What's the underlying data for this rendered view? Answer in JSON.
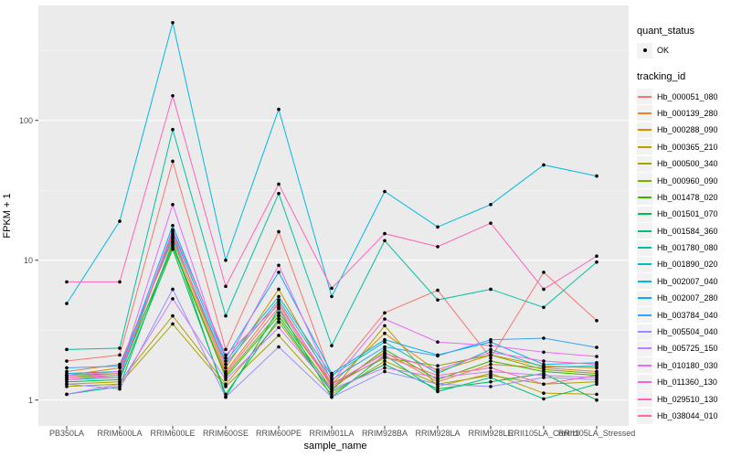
{
  "figure": {
    "background": "#FFFFFF",
    "panel_background": "#EBEBEB",
    "grid_major_color": "#FFFFFF",
    "grid_minor_color": "#F5F5F5",
    "tick_label_color": "#4D4D4D",
    "point_color": "#000000",
    "legend_key_background": "#F2F2F2"
  },
  "axes": {
    "y_title": "FPKM + 1",
    "x_title": "sample_name",
    "y_scale": "log10",
    "y_tick_labels": [
      "1",
      "10",
      "100"
    ],
    "y_tick_values": [
      1,
      10,
      100
    ],
    "y_minor_values": [
      3.162,
      31.62,
      316.2
    ]
  },
  "legend": {
    "quant_status_title": "quant_status",
    "quant_status_items": [
      {
        "label": "OK",
        "marker": "point-icon"
      }
    ],
    "tracking_title": "tracking_id"
  },
  "chart_data": {
    "type": "line",
    "title": "",
    "xlabel": "sample_name",
    "ylabel": "FPKM + 1",
    "y_scale": "log10",
    "ylim": [
      0.65,
      660
    ],
    "y_major_ticks": [
      1,
      10,
      100
    ],
    "y_minor_ticks": [
      3.162,
      31.62,
      316.2
    ],
    "grid": true,
    "legend_position": "right",
    "point_marker": "filled-circle-black",
    "categories": [
      "PB350LA",
      "RRIM600LA",
      "RRIM600LE",
      "RRIM600SE",
      "RRIM600PE",
      "RRIM901LA",
      "RRIM928BA",
      "RRIM928LA",
      "RRIM928LE",
      "RRII105LA_Control",
      "RRII105LA_Stressed"
    ],
    "series": [
      {
        "name": "Hb_000051_080",
        "color": "#F8766D",
        "values": [
          1.9,
          2.1,
          51,
          2.3,
          16,
          1.45,
          4.2,
          6.1,
          2.0,
          8.2,
          3.7
        ]
      },
      {
        "name": "Hb_000139_280",
        "color": "#EA8331",
        "values": [
          1.6,
          1.8,
          14,
          1.6,
          5.0,
          1.25,
          2.2,
          1.35,
          1.8,
          1.7,
          1.6
        ]
      },
      {
        "name": "Hb_000288_090",
        "color": "#D89000",
        "values": [
          1.5,
          1.7,
          15,
          1.7,
          6.2,
          1.3,
          3.0,
          1.6,
          2.1,
          1.75,
          1.7
        ]
      },
      {
        "name": "Hb_000365_210",
        "color": "#C09B00",
        "values": [
          1.3,
          1.35,
          4.0,
          1.3,
          3.6,
          1.15,
          3.4,
          1.25,
          1.55,
          1.12,
          1.1
        ]
      },
      {
        "name": "Hb_000500_340",
        "color": "#A3A500",
        "values": [
          1.25,
          1.3,
          3.5,
          1.25,
          2.9,
          1.1,
          1.9,
          1.3,
          1.5,
          1.3,
          1.35
        ]
      },
      {
        "name": "Hb_000960_090",
        "color": "#7CAE00",
        "values": [
          1.45,
          1.5,
          13,
          1.5,
          4.2,
          1.3,
          2.0,
          1.76,
          2.1,
          1.65,
          1.55
        ]
      },
      {
        "name": "Hb_001478_020",
        "color": "#39B600",
        "values": [
          1.5,
          1.55,
          12.5,
          1.45,
          4.0,
          1.2,
          2.3,
          1.4,
          1.9,
          1.6,
          1.5
        ]
      },
      {
        "name": "Hb_001501_070",
        "color": "#00BB4E",
        "values": [
          1.35,
          1.4,
          12,
          1.1,
          3.8,
          1.15,
          1.8,
          1.2,
          1.35,
          1.55,
          1.0
        ]
      },
      {
        "name": "Hb_001584_360",
        "color": "#00BF7D",
        "values": [
          1.1,
          1.25,
          13.5,
          1.05,
          4.5,
          1.05,
          2.1,
          1.15,
          1.45,
          1.02,
          1.3
        ]
      },
      {
        "name": "Hb_001780_080",
        "color": "#00C1A3",
        "values": [
          2.3,
          2.35,
          86,
          4.0,
          30,
          2.45,
          13.8,
          5.2,
          6.2,
          4.6,
          9.7
        ]
      },
      {
        "name": "Hb_001890_020",
        "color": "#00BFC4",
        "values": [
          1.4,
          1.45,
          16,
          1.9,
          5.5,
          1.5,
          2.6,
          1.55,
          2.3,
          1.72,
          1.75
        ]
      },
      {
        "name": "Hb_002007_040",
        "color": "#00BAE0",
        "values": [
          4.9,
          19,
          500,
          10,
          120,
          5.5,
          31,
          17.3,
          25,
          48,
          40
        ]
      },
      {
        "name": "Hb_002007_280",
        "color": "#00B0F6",
        "values": [
          1.55,
          1.6,
          17.7,
          2.0,
          8.2,
          1.55,
          2.7,
          2.1,
          2.6,
          1.8,
          1.85
        ]
      },
      {
        "name": "Hb_003784_040",
        "color": "#35A2FF",
        "values": [
          1.7,
          1.75,
          14.5,
          1.8,
          5.2,
          1.4,
          2.4,
          2.07,
          2.7,
          2.77,
          2.38
        ]
      },
      {
        "name": "Hb_005504_040",
        "color": "#9590FF",
        "values": [
          1.3,
          1.2,
          6.2,
          1.05,
          2.4,
          1.05,
          1.6,
          1.3,
          1.25,
          1.45,
          1.4
        ]
      },
      {
        "name": "Hb_005725_150",
        "color": "#C77CFF",
        "values": [
          1.1,
          1.3,
          5.3,
          1.4,
          3.3,
          1.2,
          1.7,
          1.45,
          1.6,
          1.5,
          1.45
        ]
      },
      {
        "name": "Hb_010180_030",
        "color": "#E76BF3",
        "values": [
          1.5,
          1.6,
          25,
          1.8,
          9.2,
          1.35,
          3.8,
          2.6,
          2.45,
          2.2,
          2.05
        ]
      },
      {
        "name": "Hb_011360_130",
        "color": "#FA62DB",
        "values": [
          1.4,
          1.5,
          16.5,
          2.1,
          4.8,
          1.3,
          2.15,
          1.65,
          2.2,
          1.9,
          1.8
        ]
      },
      {
        "name": "Hb_029510_130",
        "color": "#FF62BC",
        "values": [
          7.0,
          7.0,
          150,
          6.5,
          35,
          6.3,
          15.5,
          12.5,
          18.4,
          6.2,
          10.7
        ]
      },
      {
        "name": "Hb_038044_010",
        "color": "#FF6A98",
        "values": [
          1.45,
          1.55,
          15.5,
          1.55,
          4.6,
          1.25,
          2.05,
          1.5,
          1.7,
          1.3,
          1.5
        ]
      }
    ]
  }
}
